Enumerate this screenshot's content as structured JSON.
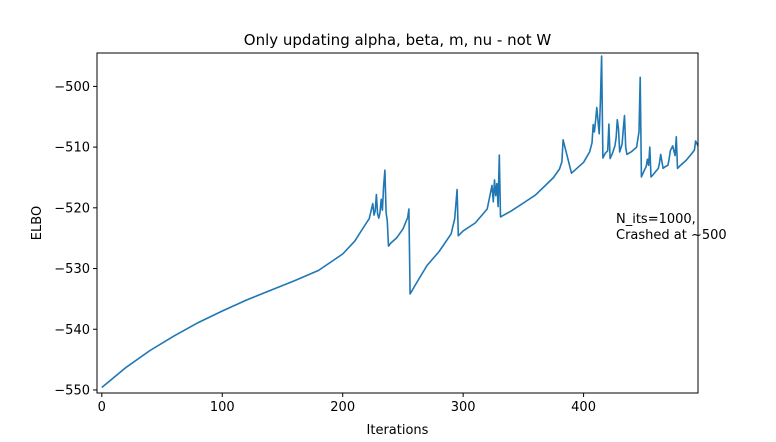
{
  "chart_data": {
    "type": "line",
    "title": "Only updating alpha, beta, m, nu - not W",
    "xlabel": "Iterations",
    "ylabel": "ELBO",
    "xlim": [
      -4,
      495
    ],
    "ylim": [
      -550.5,
      -494.5
    ],
    "xticks": [
      0,
      100,
      200,
      300,
      400
    ],
    "xtick_labels": [
      "0",
      "100",
      "200",
      "300",
      "400"
    ],
    "yticks": [
      -550,
      -540,
      -530,
      -520,
      -510,
      -500
    ],
    "ytick_labels": [
      "−550",
      "−540",
      "−530",
      "−520",
      "−510",
      "−500"
    ],
    "grid": false,
    "color": "#1f77b4",
    "annotation": {
      "lines": [
        "N_its=1000,",
        "Crashed at ~500"
      ],
      "x": 425,
      "y": -521.7
    },
    "series": [
      {
        "x": [
          0,
          20,
          40,
          60,
          80,
          100,
          120,
          140,
          160,
          180,
          200,
          210,
          218,
          222,
          225,
          226,
          227,
          228,
          229,
          230,
          231,
          232,
          233,
          234,
          235,
          236,
          237,
          238,
          240,
          245,
          250,
          254,
          255,
          256,
          260,
          270,
          280,
          290,
          293,
          295,
          296,
          300,
          310,
          320,
          324,
          325,
          326,
          327,
          328,
          329,
          330,
          331,
          340,
          350,
          360,
          370,
          375,
          380,
          382,
          383,
          390,
          400,
          405,
          407,
          408,
          409,
          410,
          411,
          413,
          414,
          415,
          416,
          418,
          420,
          421,
          422,
          424,
          426,
          427,
          428,
          429,
          430,
          432,
          433,
          434,
          435,
          436,
          440,
          444,
          446,
          447,
          448,
          450,
          452,
          453,
          454,
          455,
          456,
          458,
          460,
          462,
          463,
          464,
          466,
          468,
          470,
          471,
          472,
          474,
          476,
          477,
          478,
          480,
          485,
          490,
          492,
          493,
          495
        ],
        "y": [
          -549.6,
          -546.3,
          -543.5,
          -541.1,
          -538.9,
          -537.0,
          -535.2,
          -533.6,
          -532.0,
          -530.3,
          -527.6,
          -525.5,
          -523.0,
          -521.8,
          -519.3,
          -521.2,
          -520.5,
          -517.8,
          -521.0,
          -521.7,
          -520.8,
          -518.6,
          -520.4,
          -516.5,
          -513.8,
          -520.8,
          -522.2,
          -526.3,
          -525.8,
          -524.9,
          -523.5,
          -521.6,
          -520.2,
          -534.2,
          -532.8,
          -529.5,
          -527.2,
          -524.3,
          -521.8,
          -517.0,
          -524.6,
          -523.8,
          -522.5,
          -520.2,
          -516.3,
          -519.0,
          -515.4,
          -518.0,
          -516.0,
          -519.8,
          -511.3,
          -521.5,
          -520.5,
          -519.2,
          -517.9,
          -516.0,
          -515.0,
          -513.6,
          -512.4,
          -508.8,
          -514.3,
          -512.5,
          -510.8,
          -509.3,
          -506.3,
          -507.5,
          -505.6,
          -503.5,
          -507.8,
          -502.5,
          -495.0,
          -511.8,
          -511.0,
          -510.6,
          -506.2,
          -511.9,
          -511.0,
          -509.8,
          -508.5,
          -505.5,
          -507.0,
          -510.8,
          -509.5,
          -507.0,
          -504.8,
          -510.0,
          -511.2,
          -510.7,
          -510.0,
          -507.5,
          -498.5,
          -514.9,
          -514.0,
          -513.2,
          -512.0,
          -513.0,
          -510.0,
          -514.9,
          -514.5,
          -514.0,
          -513.5,
          -512.6,
          -511.2,
          -513.5,
          -513.2,
          -513.0,
          -512.0,
          -510.6,
          -509.8,
          -511.4,
          -508.3,
          -513.5,
          -513.1,
          -512.2,
          -511.0,
          -510.5,
          -509.0,
          -509.8
        ]
      }
    ]
  }
}
